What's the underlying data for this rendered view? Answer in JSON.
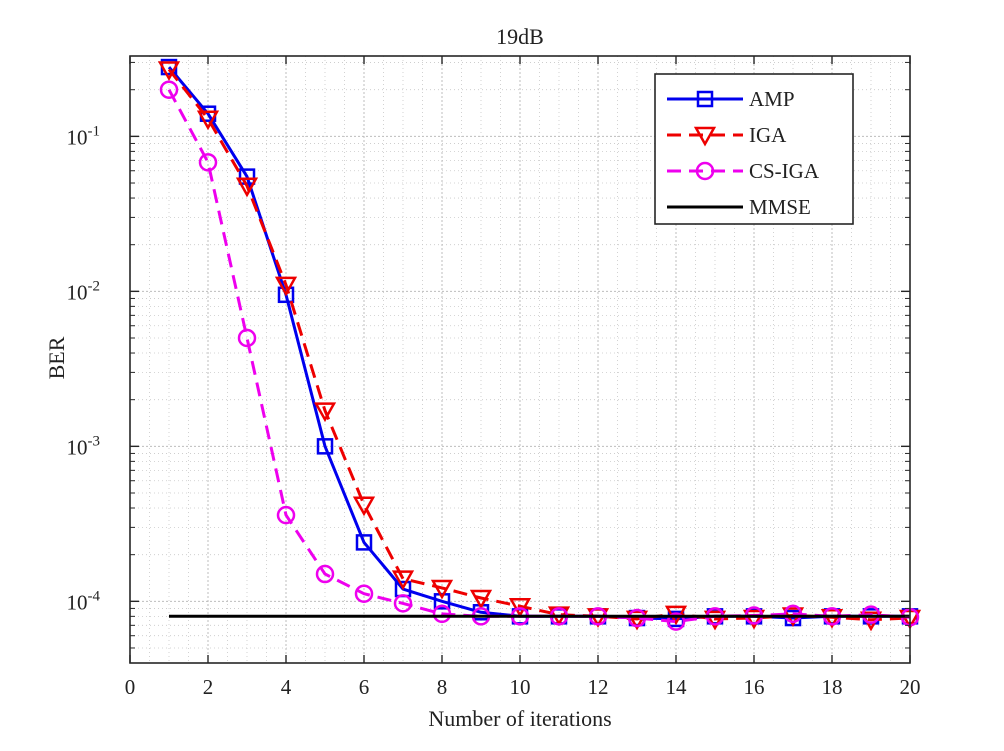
{
  "chart_data": {
    "type": "line",
    "title": "19dB",
    "xlabel": "Number of iterations",
    "ylabel": "BER",
    "yscale": "log",
    "xlim": [
      0,
      20
    ],
    "ylim": [
      4e-05,
      0.33
    ],
    "grid": true,
    "minor_grid": true,
    "legend_position": "top-right",
    "xticks": [
      0,
      2,
      4,
      6,
      8,
      10,
      12,
      14,
      16,
      18,
      20
    ],
    "xtick_labels": [
      "0",
      "2",
      "4",
      "6",
      "8",
      "10",
      "12",
      "14",
      "16",
      "18",
      "20"
    ],
    "yticks": [
      {
        "value": 0.1,
        "base": "10",
        "exp": "-1"
      },
      {
        "value": 0.01,
        "base": "10",
        "exp": "-2"
      },
      {
        "value": 0.001,
        "base": "10",
        "exp": "-3"
      },
      {
        "value": 0.0001,
        "base": "10",
        "exp": "-4"
      }
    ],
    "x": [
      1,
      2,
      3,
      4,
      5,
      6,
      7,
      8,
      9,
      10,
      11,
      12,
      13,
      14,
      15,
      16,
      17,
      18,
      19,
      20
    ],
    "series": [
      {
        "name": "AMP",
        "color": "#0000ee",
        "dash": "solid",
        "marker": "square",
        "values": [
          0.28,
          0.14,
          0.055,
          0.0095,
          0.001,
          0.00024,
          0.00012,
          0.0001,
          8.5e-05,
          8e-05,
          8e-05,
          8e-05,
          7.8e-05,
          7.7e-05,
          8e-05,
          8e-05,
          7.8e-05,
          8e-05,
          8e-05,
          8e-05
        ]
      },
      {
        "name": "IGA",
        "color": "#ee0000",
        "dash": "dashed",
        "marker": "triangle-down",
        "values": [
          0.27,
          0.13,
          0.048,
          0.011,
          0.0017,
          0.00042,
          0.00014,
          0.000122,
          0.000105,
          9.3e-05,
          8.2e-05,
          8e-05,
          7.7e-05,
          8.3e-05,
          7.7e-05,
          7.8e-05,
          8.1e-05,
          7.9e-05,
          7.6e-05,
          7.8e-05
        ]
      },
      {
        "name": "CS-IGA",
        "color": "#ee00ee",
        "dash": "dashed",
        "marker": "circle",
        "values": [
          0.2,
          0.068,
          0.005,
          0.00036,
          0.00015,
          0.000112,
          9.7e-05,
          8.3e-05,
          8e-05,
          8e-05,
          8e-05,
          8e-05,
          7.8e-05,
          7.4e-05,
          8e-05,
          8.1e-05,
          8.3e-05,
          8e-05,
          8.2e-05,
          7.9e-05
        ]
      },
      {
        "name": "MMSE",
        "color": "#000000",
        "dash": "solid",
        "marker": "none",
        "values": [
          8e-05,
          8e-05,
          8e-05,
          8e-05,
          8e-05,
          8e-05,
          8e-05,
          8e-05,
          8e-05,
          8e-05,
          8e-05,
          8e-05,
          8e-05,
          8e-05,
          8e-05,
          8e-05,
          8e-05,
          8e-05,
          8e-05,
          8e-05
        ]
      }
    ]
  }
}
